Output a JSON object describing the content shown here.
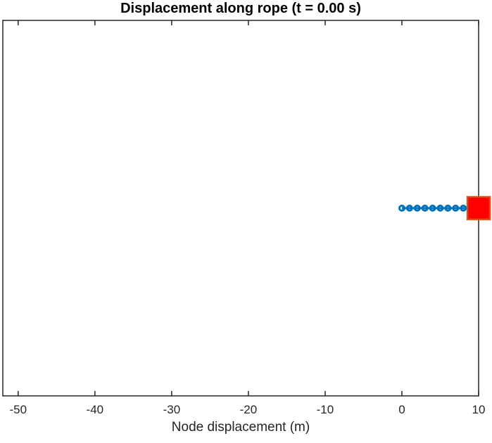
{
  "chart_data": {
    "type": "line",
    "title": "Displacement along rope (t = 0.00 s)",
    "xlabel": "Node displacement (m)",
    "ylabel": "",
    "xlim": [
      -52,
      10
    ],
    "ylim": [
      -1,
      1
    ],
    "x_ticks": [
      -50,
      -40,
      -30,
      -20,
      -10,
      0,
      10
    ],
    "y_ticks": [],
    "grid": false,
    "legend": null,
    "box": true,
    "tick_direction": "in",
    "axis_color": "#262626",
    "series": [
      {
        "name": "rope-nodes",
        "type": "line+markers",
        "marker": "open-circle",
        "color": "#0072BD",
        "line_width": 3,
        "x": [
          0,
          1,
          2,
          3,
          4,
          5,
          6,
          7,
          8,
          9,
          10
        ],
        "y": [
          0,
          0,
          0,
          0,
          0,
          0,
          0,
          0,
          0,
          0,
          0
        ]
      },
      {
        "name": "end-mass",
        "type": "marker",
        "marker": "filled-square",
        "marker_size": 32,
        "face_color": "#FF0000",
        "edge_color": "#D95319",
        "x": [
          10
        ],
        "y": [
          0
        ]
      }
    ]
  }
}
